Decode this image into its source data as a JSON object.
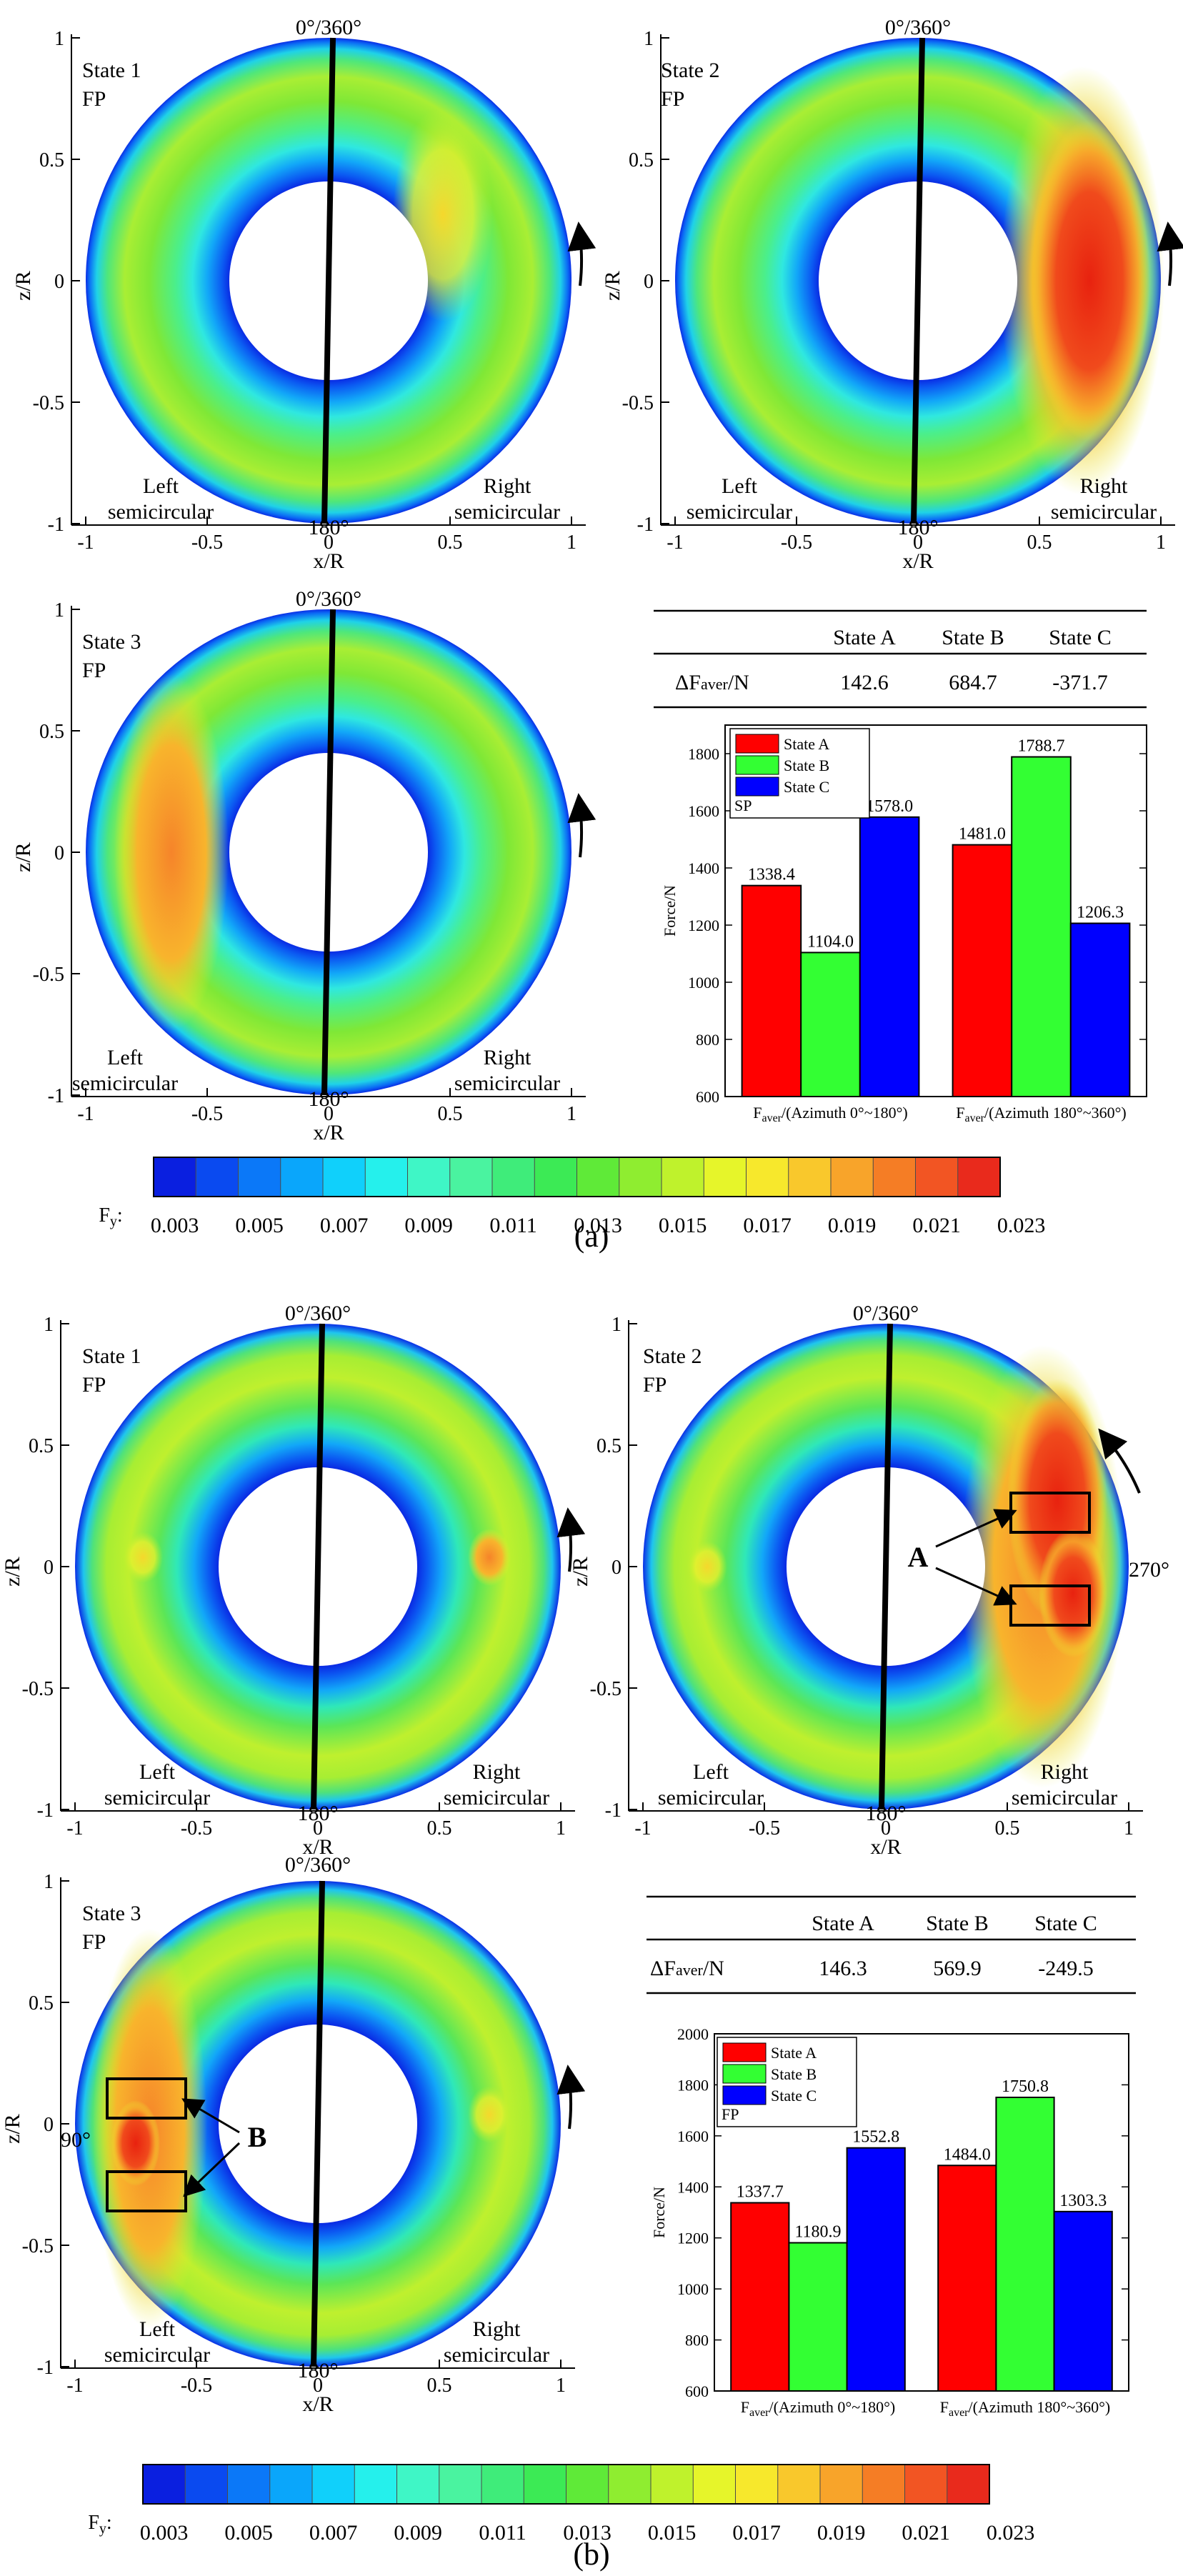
{
  "colors": {
    "ramp": [
      "#0a1fe0",
      "#0a4af0",
      "#0b78f8",
      "#0aa6fb",
      "#10d0fb",
      "#25f0ec",
      "#3ff6c6",
      "#4af3a0",
      "#3fec7a",
      "#3cea55",
      "#5fea38",
      "#8fed30",
      "#bff22c",
      "#e6f52a",
      "#f7e82c",
      "#f9c82c",
      "#f8a42a",
      "#f57d25",
      "#f25523",
      "#e92a1c"
    ],
    "inner_blue": "#1018e0",
    "mid_blue": "#14a9f8",
    "green": "#4ce05a",
    "yellow": "#e7f02e",
    "orange": "#f6a12a",
    "red": "#e8220f",
    "bar_a": "#ff0000",
    "bar_b": "#33ff33",
    "bar_c": "#0000ff"
  },
  "panel_a": {
    "label": "(a)",
    "states": [
      {
        "state": "State 1",
        "mode": "FP",
        "hot_zone": "none"
      },
      {
        "state": "State 2",
        "mode": "FP",
        "hot_zone": "right semicircular"
      },
      {
        "state": "State 3",
        "mode": "FP",
        "hot_zone": "left semicircular"
      }
    ],
    "contour_text": {
      "top": "0°/360°",
      "bottom": "180°",
      "left": "Left",
      "left2": "semicircular",
      "right": "Right",
      "right2": "semicircular",
      "xlabel": "x/R",
      "ylabel": "z/R",
      "xticks": [
        "-1",
        "-0.5",
        "0",
        "0.5",
        "1"
      ],
      "yticks": [
        "1",
        "0.5",
        "0",
        "-0.5",
        "-1"
      ]
    },
    "table": {
      "headers": [
        "",
        "State A",
        "State B",
        "State C"
      ],
      "row_label": "ΔF",
      "row_sub": "aver",
      "row_unit": "/N",
      "values": [
        "142.6",
        "684.7",
        "-371.7"
      ]
    },
    "colorbar": {
      "label": "F",
      "label_sub": "y",
      "label_colon": ":",
      "ticks": [
        "0.003",
        "0.005",
        "0.007",
        "0.009",
        "0.011",
        "0.013",
        "0.015",
        "0.017",
        "0.019",
        "0.021",
        "0.023"
      ]
    }
  },
  "panel_b": {
    "label": "(b)",
    "states": [
      {
        "state": "State 1",
        "mode": "FP",
        "hot_zone": "small spots"
      },
      {
        "state": "State 2",
        "mode": "FP",
        "hot_zone": "right semicircular"
      },
      {
        "state": "State 3",
        "mode": "FP",
        "hot_zone": "left semicircular"
      }
    ],
    "annotations": {
      "a": "A",
      "b": "B",
      "deg270": "270°",
      "deg90": "90°"
    },
    "table": {
      "headers": [
        "",
        "State A",
        "State B",
        "State C"
      ],
      "row_label": "ΔF",
      "row_sub": "aver",
      "row_unit": "/N",
      "values": [
        "146.3",
        "569.9",
        "-249.5"
      ]
    },
    "colorbar": {
      "label": "F",
      "label_sub": "y",
      "label_colon": ":",
      "ticks": [
        "0.003",
        "0.005",
        "0.007",
        "0.009",
        "0.011",
        "0.013",
        "0.015",
        "0.017",
        "0.019",
        "0.021",
        "0.023"
      ]
    }
  },
  "chart_data": [
    {
      "type": "bar",
      "title": "SP",
      "categories": [
        "(Azimuth 0°~180°)",
        "(Azimuth 180°~360°)"
      ],
      "category_prefix": "F",
      "category_prefix_sub": "aver",
      "category_sep": "/",
      "series": [
        {
          "name": "State A",
          "values": [
            1338.4,
            1481.0
          ]
        },
        {
          "name": "State B",
          "values": [
            1104.0,
            1788.7
          ]
        },
        {
          "name": "State C",
          "values": [
            1578.0,
            1206.3
          ]
        }
      ],
      "labels": [
        [
          "1338.4",
          "1481.0"
        ],
        [
          "1104.0",
          "1788.7"
        ],
        [
          "1578.0",
          "1206.3"
        ]
      ],
      "ylabel": "Force/N",
      "ylim": [
        600,
        1900
      ],
      "yticks": [
        "600",
        "800",
        "1000",
        "1200",
        "1400",
        "1600",
        "1800"
      ],
      "ytick_values": [
        600,
        800,
        1000,
        1200,
        1400,
        1600,
        1800
      ]
    },
    {
      "type": "bar",
      "title": "FP",
      "categories": [
        "(Azimuth 0°~180°)",
        "(Azimuth 180°~360°)"
      ],
      "category_prefix": "F",
      "category_prefix_sub": "aver",
      "category_sep": "/",
      "series": [
        {
          "name": "State A",
          "values": [
            1337.7,
            1484.0
          ]
        },
        {
          "name": "State B",
          "values": [
            1180.9,
            1750.8
          ]
        },
        {
          "name": "State C",
          "values": [
            1552.8,
            1303.3
          ]
        }
      ],
      "labels": [
        [
          "1337.7",
          "1484.0"
        ],
        [
          "1180.9",
          "1750.8"
        ],
        [
          "1552.8",
          "1303.3"
        ]
      ],
      "ylabel": "Force/N",
      "ylim": [
        600,
        2000
      ],
      "yticks": [
        "600",
        "800",
        "1000",
        "1200",
        "1400",
        "1600",
        "1800",
        "2000"
      ],
      "ytick_values": [
        600,
        800,
        1000,
        1200,
        1400,
        1600,
        1800,
        2000
      ]
    }
  ]
}
